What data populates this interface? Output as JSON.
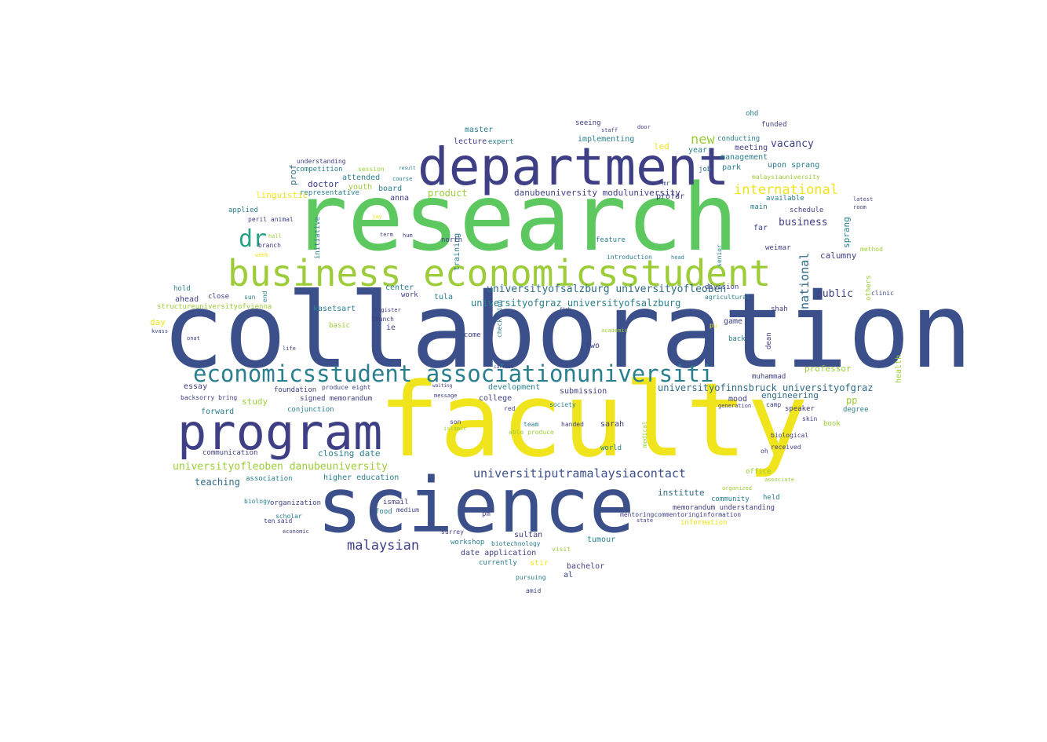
{
  "palette": {
    "navy": "#3b4f8a",
    "indigo": "#3f3f86",
    "teal": "#2a7f8e",
    "teal_dark": "#2f6b86",
    "green": "#5cc85f",
    "lime": "#9ccd38",
    "yellow": "#f0e41c",
    "purple": "#47266b",
    "seagreen": "#27a183"
  },
  "words": {
    "collaboration": "collaboration",
    "research": "research",
    "faculty": "faculty",
    "science": "science",
    "department": "department",
    "program": "program",
    "business_economicsstudent": "business economicsstudent",
    "economicsstudent_association": "economicsstudent associationuniversiti",
    "dr": "dr",
    "international": "international",
    "new": "new",
    "vacancy": "vacancy",
    "universityofsalzburg_leoben": "universityofsalzburg universityofleoben",
    "universityofgraz_salzburg": "universityofgraz universityofsalzburg",
    "universityofinnsbruck_graz": "universityofinnsbruck universityofgraz",
    "universiti_putra": "universitiputramalaysiacontact",
    "universityofleoben_danube": "universityofleoben danubeuniversity",
    "danube_modul": "danubeuniversity moduluniversity",
    "malaysian": "malaysian",
    "business": "business",
    "national": "national",
    "public": "public",
    "calumny": "calumny",
    "sprang": "sprang",
    "upon_sprang": "upon sprang",
    "master": "master",
    "lecture": "lecture",
    "expert": "expert",
    "implementing": "implementing",
    "seeing": "seeing",
    "led": "led",
    "meeting": "meeting",
    "management": "management",
    "conducting": "conducting",
    "funded": "funded",
    "ohd": "ohd",
    "year": "year",
    "park": "park",
    "job": "job",
    "product": "product",
    "doctor": "doctor",
    "attended": "attended",
    "youth": "youth",
    "board": "board",
    "anna": "anna",
    "competition": "competition",
    "session": "session",
    "representative": "representative",
    "understanding": "understanding",
    "linguistic": "linguistic",
    "applied": "applied",
    "prof": "prof",
    "profdr": "profdr",
    "main": "main",
    "far": "far",
    "weimar": "weimar",
    "schedule": "schedule",
    "available": "available",
    "malaysiauniversity": "malaysiauniversity",
    "training": "training",
    "north": "north",
    "initiative": "initiative",
    "feature": "feature",
    "introduction": "introduction",
    "center": "center",
    "work": "work",
    "tula": "tula",
    "ie": "ie",
    "kasetsart": "kasetsart",
    "basic": "basic",
    "come": "come",
    "two": "two",
    "check_sign": "check sign",
    "launch": "launch",
    "register": "register",
    "close": "close",
    "ahead": "ahead",
    "hold": "hold",
    "day": "day",
    "structure": "structureuniversityofvienna",
    "essay": "essay",
    "foundation": "foundation",
    "produce_eight": "produce eight",
    "backsorry_bring": "backsorry bring",
    "signed_memorandum": "signed memorandum",
    "conjunction": "conjunction",
    "study": "study",
    "forward": "forward",
    "college": "college",
    "development": "development",
    "submission": "submission",
    "muhammad": "muhammad",
    "engineering": "engineering",
    "pp": "pp",
    "mood": "mood",
    "speaker": "speaker",
    "degree": "degree",
    "camp": "camp",
    "professor": "professor",
    "health": "health",
    "game": "game",
    "shah": "shah",
    "dean": "dean",
    "back": "back",
    "division": "division",
    "agricultural": "agricultural",
    "senior": "senior",
    "others": "others",
    "method": "method",
    "clinic": "clinic",
    "teaching": "teaching",
    "association": "association",
    "closing_date": "closing date",
    "higher_education": "higher education",
    "ismail": "ismail",
    "food": "food",
    "medium": "medium",
    "organization": "organization",
    "scholar": "scholar",
    "ten": "ten",
    "said": "said",
    "economic": "economic",
    "biology": "biology",
    "communication": "communication",
    "institute": "institute",
    "community": "community",
    "memorandum_understanding": "memorandum understanding",
    "held": "held",
    "mentoring": "mentoringcommentoringinformation",
    "information": "information",
    "state": "state",
    "tumour": "tumour",
    "sultan": "sultan",
    "workshop": "workshop",
    "biotechnology": "biotechnology",
    "date_application": "date application",
    "visit": "visit",
    "stir": "stir",
    "bachelor": "bachelor",
    "al": "al",
    "currently": "currently",
    "pursuing": "pursuing",
    "amid": "amid",
    "pm": "pm",
    "surrey": "surrey",
    "sarah": "sarah",
    "world": "world",
    "handed": "handed",
    "team": "team",
    "able_produce": "able produce",
    "red": "red",
    "son": "son",
    "islamic": "islamic",
    "message": "message",
    "waiting": "waiting",
    "society": "society",
    "medical": "medical",
    "received": "received",
    "biological": "biological",
    "oh": "oh",
    "book": "book",
    "skin": "skin",
    "office": "office",
    "associate": "associate",
    "organized": "organized",
    "hall": "hall",
    "branch": "branch",
    "peril_animal": "peril animal",
    "week": "week",
    "end": "end",
    "sun": "sun",
    "term": "term",
    "hum": "hum",
    "jay": "jay",
    "course": "course",
    "result": "result",
    "mr": "mr",
    "door": "door",
    "staff": "staff",
    "latest": "latest",
    "room": "room",
    "head": "head",
    "pu": "pu",
    "life": "life",
    "kvass": "kvass",
    "onat": "onat",
    "generation": "generation",
    "carried": "carried",
    "academic": "academic",
    "fish": "fish"
  }
}
